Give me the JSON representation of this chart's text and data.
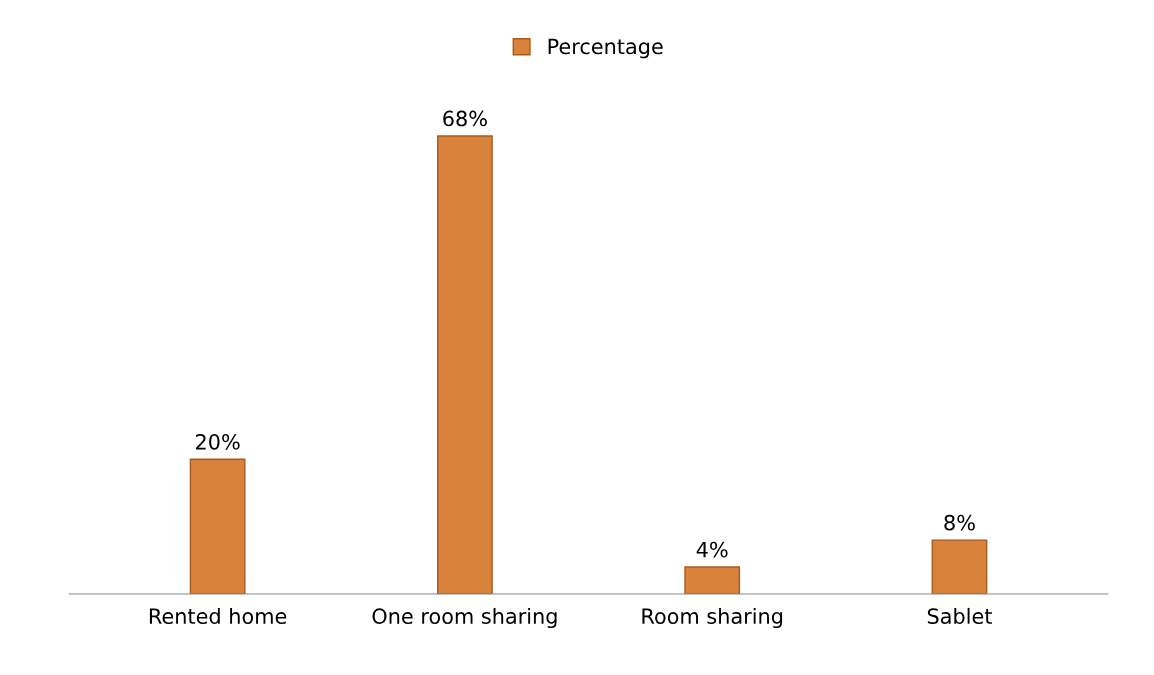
{
  "chart_data": {
    "type": "bar",
    "categories": [
      "Rented home",
      "One room sharing",
      "Room sharing",
      "Sablet"
    ],
    "series": [
      {
        "name": "Percentage",
        "color": "#d9823b",
        "values": [
          20,
          68,
          4,
          8
        ],
        "value_labels": [
          "20%",
          "68%",
          "4%",
          "8%"
        ]
      }
    ],
    "legend": "top",
    "grid": false
  }
}
